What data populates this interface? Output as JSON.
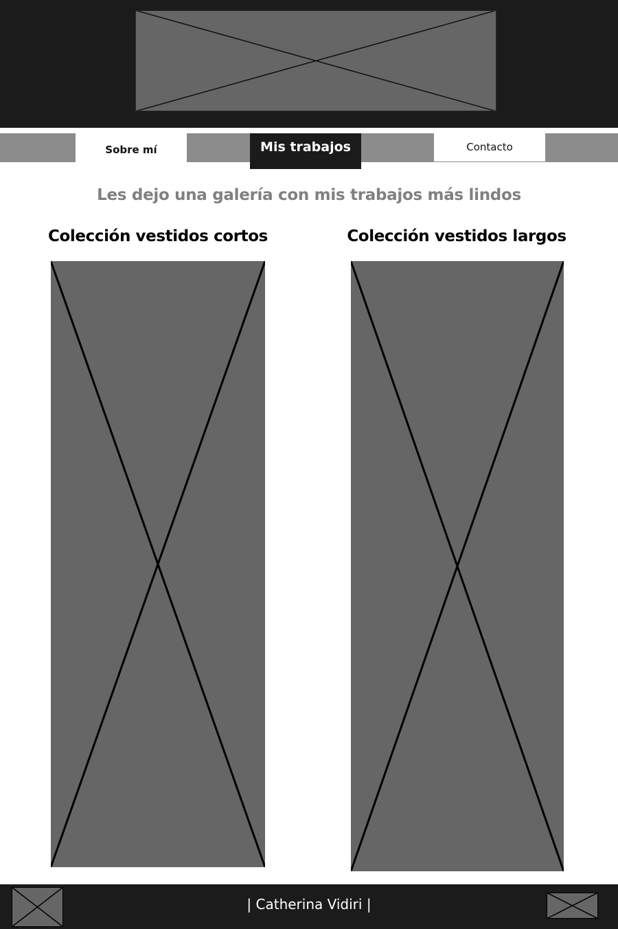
{
  "header": {
    "banner_image": "image-placeholder"
  },
  "nav": {
    "items": [
      {
        "label": "Sobre mí"
      },
      {
        "label": "Mis trabajos"
      },
      {
        "label": "Contacto"
      }
    ],
    "active": "Mis trabajos"
  },
  "main": {
    "intro": "Les dejo una galería con mis trabajos más lindos",
    "collections": [
      {
        "title": "Colección vestidos cortos",
        "image": "image-placeholder"
      },
      {
        "title": "Colección vestidos largos",
        "image": "image-placeholder"
      }
    ]
  },
  "footer": {
    "text": "| Catherina Vidiri |",
    "left_icon": "image-placeholder",
    "right_icon": "image-placeholder"
  },
  "colors": {
    "dark": "#1b1b1b",
    "nav_gray": "#8c8c8c",
    "placeholder": "#666666",
    "intro_text": "#808080"
  }
}
